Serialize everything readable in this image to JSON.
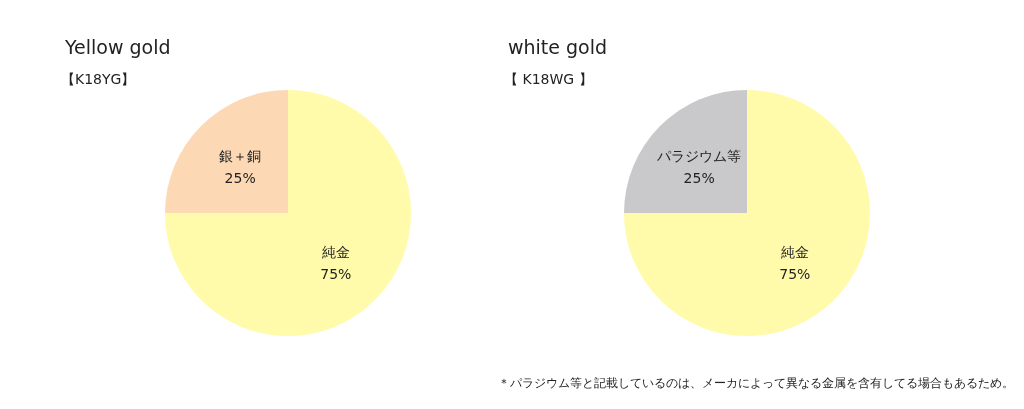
{
  "chart_data": [
    {
      "type": "pie",
      "title": "Yellow gold",
      "subtitle": "【K18YG】",
      "categories": [
        "純金",
        "銀＋銅"
      ],
      "values": [
        75,
        25
      ],
      "colors": [
        "#fffbaa",
        "#fcd9b4"
      ],
      "value_labels": [
        "75%",
        "25%"
      ]
    },
    {
      "type": "pie",
      "title": "white gold",
      "subtitle": "【 K18WG 】",
      "categories": [
        "純金",
        "パラジウム等"
      ],
      "values": [
        75,
        25
      ],
      "colors": [
        "#fffbaa",
        "#c9c9cb"
      ],
      "value_labels": [
        "75%",
        "25%"
      ],
      "annotations": [
        "＊パラジウム等と記載しているのは、メーカによって異なる金属を含有してる場合もあるため。"
      ]
    }
  ]
}
